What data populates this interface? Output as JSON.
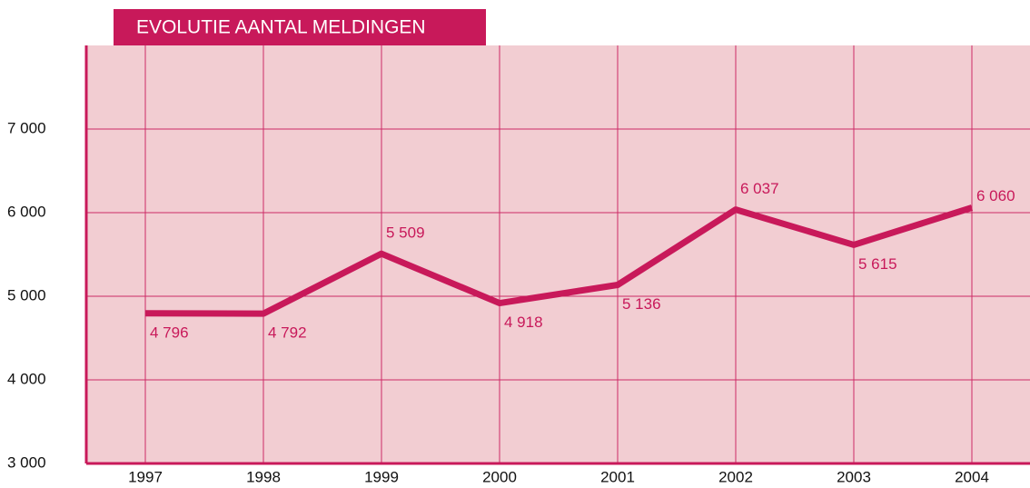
{
  "chart_data": {
    "type": "line",
    "title": "EVOLUTIE AANTAL MELDINGEN",
    "categories": [
      "1997",
      "1998",
      "1999",
      "2000",
      "2001",
      "2002",
      "2003",
      "2004"
    ],
    "values": [
      4796,
      4792,
      5509,
      4918,
      5136,
      6037,
      5615,
      6060
    ],
    "value_labels": [
      "4 796",
      "4 792",
      "5 509",
      "4 918",
      "5 136",
      "6 037",
      "5 615",
      "6 060"
    ],
    "color": "#c8195a",
    "ylim": [
      3000,
      8000
    ],
    "yticks": [
      {
        "value": 3000,
        "label": "3 000"
      },
      {
        "value": 4000,
        "label": "4 000"
      },
      {
        "value": 5000,
        "label": "5 000"
      },
      {
        "value": 6000,
        "label": "6 000"
      },
      {
        "value": 7000,
        "label": "7 000"
      }
    ],
    "grid": true
  }
}
